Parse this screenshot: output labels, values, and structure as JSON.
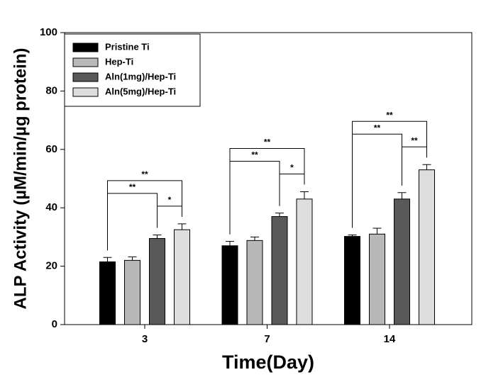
{
  "chart_data": {
    "type": "bar",
    "xlabel": "Time(Day)",
    "ylabel": "ALP Activity (µM/min/µg protein)",
    "categories": [
      "3",
      "7",
      "14"
    ],
    "series": [
      {
        "name": "Pristine Ti",
        "color": "#000000",
        "values": [
          21.5,
          27,
          30.2
        ],
        "errors": [
          1.5,
          1.5,
          0.5
        ]
      },
      {
        "name": "Hep-Ti",
        "color": "#b8b8b8",
        "values": [
          22,
          28.8,
          31
        ],
        "errors": [
          1.2,
          1.2,
          2
        ]
      },
      {
        "name": "Aln(1mg)/Hep-Ti",
        "color": "#595959",
        "values": [
          29.5,
          37,
          43
        ],
        "errors": [
          1.2,
          1.2,
          2.2
        ]
      },
      {
        "name": "Aln(5mg)/Hep-Ti",
        "color": "#dedede",
        "values": [
          32.5,
          43,
          53
        ],
        "errors": [
          2,
          2.5,
          1.8
        ]
      }
    ],
    "ylim": [
      0,
      100
    ],
    "yticks": [
      0,
      20,
      40,
      60,
      80,
      100
    ],
    "legend": "upper left",
    "annotations": [
      {
        "category": 0,
        "from": 2,
        "to": 3,
        "label": "*"
      },
      {
        "category": 0,
        "from": 0,
        "to": 2,
        "label": "**"
      },
      {
        "category": 0,
        "from": 0,
        "to": 3,
        "label": "**"
      },
      {
        "category": 1,
        "from": 2,
        "to": 3,
        "label": "*"
      },
      {
        "category": 1,
        "from": 0,
        "to": 2,
        "label": "**"
      },
      {
        "category": 1,
        "from": 0,
        "to": 3,
        "label": "**"
      },
      {
        "category": 2,
        "from": 2,
        "to": 3,
        "label": "**"
      },
      {
        "category": 2,
        "from": 0,
        "to": 2,
        "label": "**"
      },
      {
        "category": 2,
        "from": 0,
        "to": 3,
        "label": "**"
      }
    ]
  }
}
